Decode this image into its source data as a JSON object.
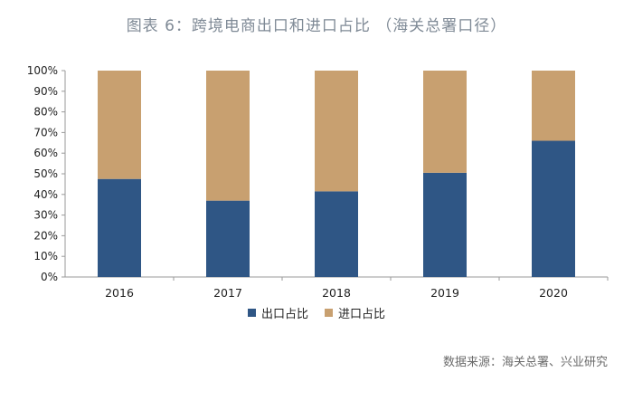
{
  "title": "图表 6：跨境电商出口和进口占比 （海关总署口径）",
  "source": "数据来源：海关总署、兴业研究",
  "colors": {
    "export": "#2f5685",
    "import": "#c8a070",
    "axis": "#9a9a9a"
  },
  "legend": [
    {
      "name": "出口占比",
      "color": "#2f5685"
    },
    {
      "name": "进口占比",
      "color": "#c8a070"
    }
  ],
  "chart_data": {
    "type": "bar",
    "stacked": true,
    "title": "图表 6：跨境电商出口和进口占比 （海关总署口径）",
    "categories": [
      "2016",
      "2017",
      "2018",
      "2019",
      "2020"
    ],
    "series": [
      {
        "name": "出口占比",
        "values": [
          47.5,
          37,
          41.5,
          50.5,
          66
        ]
      },
      {
        "name": "进口占比",
        "values": [
          52.5,
          63,
          58.5,
          49.5,
          34
        ]
      }
    ],
    "ylim": [
      0,
      100
    ],
    "yticks": [
      "0%",
      "10%",
      "20%",
      "30%",
      "40%",
      "50%",
      "60%",
      "70%",
      "80%",
      "90%",
      "100%"
    ],
    "grid": false,
    "legend_position": "bottom"
  }
}
